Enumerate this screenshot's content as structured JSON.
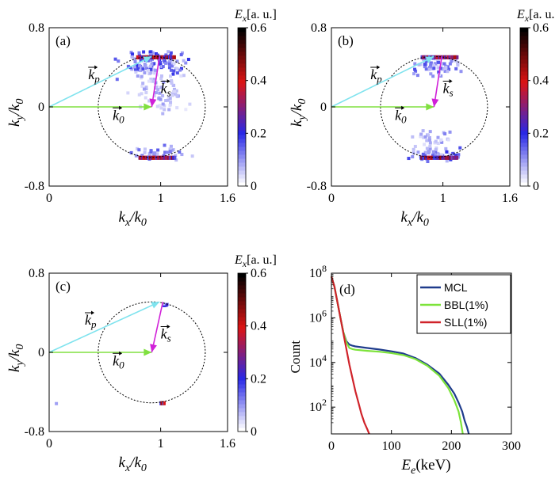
{
  "chart_data": [
    {
      "panel": "(a)",
      "type": "heatmap",
      "xlabel": "k_x/k_0",
      "ylabel": "k_y/k_0",
      "xlim": [
        0,
        1.6
      ],
      "ylim": [
        -0.8,
        0.8
      ],
      "xticks": [
        0,
        1,
        1.6
      ],
      "xtick_labels": [
        "0",
        "1",
        "1.6"
      ],
      "yticks": [
        -0.8,
        0,
        0.8
      ],
      "ytick_labels": [
        "-0.8",
        "0",
        "0.8"
      ],
      "colorbar": {
        "title": "E_x[a. u.]",
        "min": 0,
        "max": 0.6,
        "ticks": [
          0,
          0.2,
          0.4,
          0.6
        ],
        "tick_labels": [
          "0",
          "0.2",
          "0.4",
          "0.6"
        ]
      },
      "circle": {
        "center": [
          0.92,
          0
        ],
        "radius_x": 0.48,
        "radius_y": 0.51
      },
      "vectors": [
        {
          "name": "k_p",
          "label": "k",
          "sub": "p",
          "from": [
            0,
            0
          ],
          "to": [
            0.92,
            0.51
          ],
          "color": "#7fe3ee"
        },
        {
          "name": "k_0",
          "label": "k",
          "sub": "0",
          "from": [
            0,
            0
          ],
          "to": [
            0.92,
            0
          ],
          "color": "#80e040"
        },
        {
          "name": "k_s",
          "label": "k",
          "sub": "s",
          "from": [
            0.99,
            0.51
          ],
          "to": [
            0.92,
            0
          ],
          "color": "#d020d8"
        }
      ],
      "clusters": [
        {
          "cx": 0.92,
          "cy": 0.45,
          "sx": 0.13,
          "sy": 0.06,
          "n": 110,
          "amp": 0.25
        },
        {
          "cx": 0.95,
          "cy": 0.2,
          "sx": 0.1,
          "sy": 0.1,
          "n": 60,
          "amp": 0.13
        },
        {
          "cx": 1.1,
          "cy": 0.1,
          "sx": 0.06,
          "sy": 0.1,
          "n": 20,
          "amp": 0.1
        },
        {
          "cx": 0.95,
          "cy": -0.45,
          "sx": 0.12,
          "sy": 0.03,
          "n": 40,
          "amp": 0.2
        }
      ],
      "bands": [
        {
          "x0": 0.78,
          "x1": 1.12,
          "y": 0.505,
          "amp": 0.5
        },
        {
          "x0": 0.8,
          "x1": 1.12,
          "y": -0.51,
          "amp": 0.45
        }
      ]
    },
    {
      "panel": "(b)",
      "type": "heatmap",
      "xlabel": "k_x/k_0",
      "ylabel": "k_y/k_0",
      "xlim": [
        0,
        1.6
      ],
      "ylim": [
        -0.8,
        0.8
      ],
      "xticks": [
        0,
        1,
        1.6
      ],
      "xtick_labels": [
        "0",
        "1",
        "1.6"
      ],
      "yticks": [
        -0.8,
        0,
        0.8
      ],
      "ytick_labels": [
        "-0.8",
        "0",
        "0.8"
      ],
      "colorbar": {
        "title": "E_x[a. u.]",
        "min": 0,
        "max": 0.6,
        "ticks": [
          0,
          0.2,
          0.4,
          0.6
        ],
        "tick_labels": [
          "0",
          "0.2",
          "0.4",
          "0.6"
        ]
      },
      "circle": {
        "center": [
          0.92,
          0
        ],
        "radius_x": 0.48,
        "radius_y": 0.51
      },
      "vectors": [
        {
          "name": "k_p",
          "label": "k",
          "sub": "p",
          "from": [
            0,
            0
          ],
          "to": [
            0.92,
            0.51
          ],
          "color": "#7fe3ee"
        },
        {
          "name": "k_0",
          "label": "k",
          "sub": "0",
          "from": [
            0,
            0
          ],
          "to": [
            0.92,
            0
          ],
          "color": "#80e040"
        },
        {
          "name": "k_s",
          "label": "k",
          "sub": "s",
          "from": [
            0.99,
            0.51
          ],
          "to": [
            0.92,
            0
          ],
          "color": "#d020d8"
        }
      ],
      "clusters": [
        {
          "cx": 0.93,
          "cy": 0.42,
          "sx": 0.1,
          "sy": 0.05,
          "n": 60,
          "amp": 0.22
        },
        {
          "cx": 0.88,
          "cy": -0.35,
          "sx": 0.08,
          "sy": 0.07,
          "n": 40,
          "amp": 0.15
        },
        {
          "cx": 0.95,
          "cy": -0.48,
          "sx": 0.12,
          "sy": 0.03,
          "n": 40,
          "amp": 0.25
        }
      ],
      "bands": [
        {
          "x0": 0.8,
          "x1": 1.12,
          "y": 0.505,
          "amp": 0.45
        },
        {
          "x0": 0.79,
          "x1": 1.12,
          "y": -0.51,
          "amp": 0.5
        }
      ]
    },
    {
      "panel": "(c)",
      "type": "heatmap",
      "xlabel": "k_x/k_0",
      "ylabel": "k_y/k_0",
      "xlim": [
        0,
        1.6
      ],
      "ylim": [
        -0.8,
        0.8
      ],
      "xticks": [
        0,
        1,
        1.6
      ],
      "xtick_labels": [
        "0",
        "1",
        "1.6"
      ],
      "yticks": [
        -0.8,
        0,
        0.8
      ],
      "ytick_labels": [
        "-0.8",
        "0",
        "0.8"
      ],
      "colorbar": {
        "title": "E_x[a. u.]",
        "min": 0,
        "max": 0.6,
        "ticks": [
          0,
          0.2,
          0.4,
          0.6
        ],
        "tick_labels": [
          "0",
          "0.2",
          "0.4",
          "0.6"
        ]
      },
      "circle": {
        "center": [
          0.92,
          0
        ],
        "radius_x": 0.48,
        "radius_y": 0.51
      },
      "vectors": [
        {
          "name": "k_p",
          "label": "k",
          "sub": "p",
          "from": [
            0,
            0
          ],
          "to": [
            0.99,
            0.51
          ],
          "color": "#7fe3ee"
        },
        {
          "name": "k_0",
          "label": "k",
          "sub": "0",
          "from": [
            0,
            0
          ],
          "to": [
            0.92,
            0
          ],
          "color": "#80e040"
        },
        {
          "name": "k_s",
          "label": "k",
          "sub": "s",
          "from": [
            1.02,
            0.51
          ],
          "to": [
            0.92,
            0
          ],
          "color": "#d020d8"
        }
      ],
      "clusters": [
        {
          "cx": 1.02,
          "cy": 0.5,
          "sx": 0.015,
          "sy": 0.015,
          "n": 5,
          "amp": 0.3
        },
        {
          "cx": 0.05,
          "cy": -0.5,
          "sx": 0.005,
          "sy": 0.005,
          "n": 1,
          "amp": 0.15
        }
      ],
      "bands": [
        {
          "x0": 0.99,
          "x1": 1.03,
          "y": -0.51,
          "amp": 0.45
        }
      ]
    },
    {
      "panel": "(d)",
      "type": "line",
      "xlabel": "E_e(keV)",
      "ylabel": "Count",
      "xlim": [
        0,
        300
      ],
      "ylim_log10": [
        0.8,
        8
      ],
      "xticks": [
        0,
        100,
        200,
        300
      ],
      "xtick_labels": [
        "0",
        "100",
        "200",
        "300"
      ],
      "yticks_log10": [
        2,
        4,
        6,
        8
      ],
      "legend_position": "top-right",
      "series": [
        {
          "name": "MCL",
          "color": "#1f3c8c",
          "x": [
            0,
            5,
            10,
            15,
            20,
            25,
            30,
            35,
            40,
            60,
            80,
            100,
            120,
            140,
            160,
            180,
            195,
            205,
            212,
            218,
            222,
            226,
            229
          ],
          "log10y": [
            7.85,
            7.4,
            6.7,
            6.0,
            5.35,
            4.95,
            4.8,
            4.75,
            4.72,
            4.65,
            4.58,
            4.5,
            4.4,
            4.2,
            3.9,
            3.5,
            3.0,
            2.6,
            2.2,
            1.8,
            1.4,
            1.1,
            0.8
          ]
        },
        {
          "name": "BBL(1%)",
          "color": "#7de33a",
          "x": [
            0,
            5,
            10,
            15,
            20,
            25,
            30,
            35,
            40,
            60,
            80,
            100,
            120,
            140,
            160,
            180,
            195,
            205,
            212,
            216,
            219
          ],
          "log10y": [
            7.85,
            7.4,
            6.7,
            6.0,
            5.35,
            4.9,
            4.65,
            4.6,
            4.57,
            4.52,
            4.48,
            4.42,
            4.33,
            4.15,
            3.85,
            3.4,
            2.85,
            2.3,
            1.8,
            1.3,
            0.8
          ]
        },
        {
          "name": "SLL(1%)",
          "color": "#d0232a",
          "x": [
            0,
            5,
            10,
            15,
            20,
            25,
            30,
            35,
            40,
            45,
            50,
            55,
            60,
            63
          ],
          "log10y": [
            7.85,
            7.4,
            6.7,
            6.0,
            5.3,
            4.6,
            3.9,
            3.3,
            2.7,
            2.2,
            1.7,
            1.3,
            1.0,
            0.8
          ]
        }
      ]
    }
  ]
}
